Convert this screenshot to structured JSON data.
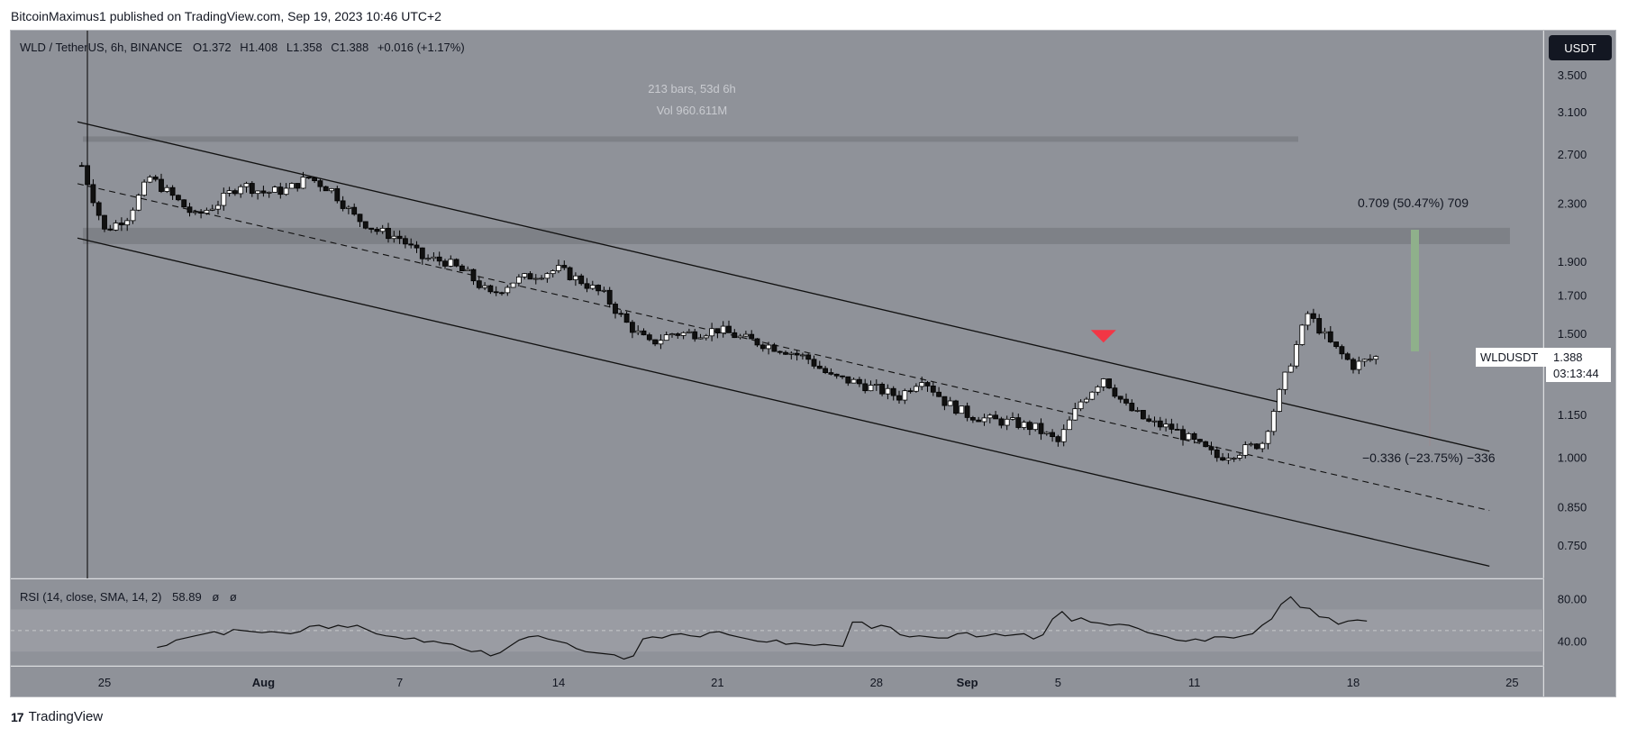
{
  "header": {
    "publisher_text": "BitcoinMaximus1 published on TradingView.com, Sep 19, 2023 10:46 UTC+2"
  },
  "footer": {
    "brand": "TradingView"
  },
  "chart_data": [
    {
      "type": "candlestick",
      "symbol_line": {
        "symbol": "WLD / TetherUS, 6h, BINANCE",
        "open_label": "O",
        "open": "1.372",
        "high_label": "H",
        "high": "1.408",
        "low_label": "L",
        "low": "1.358",
        "close_label": "C",
        "close": "1.388",
        "change": "+0.016 (+1.17%)"
      },
      "currency_button": "USDT",
      "range_info": {
        "bars": "213 bars, 53d 6h",
        "volume": "Vol 960.611M"
      },
      "measure_up": "0.709 (50.47%) 709",
      "measure_down": "−0.336 (−23.75%) −336",
      "price_tag": {
        "symbol": "WLDUSDT",
        "price": "1.388",
        "countdown": "03:13:44"
      },
      "y_ticks": [
        "3.500",
        "3.100",
        "2.700",
        "2.300",
        "1.900",
        "1.700",
        "1.500",
        "1.150",
        "1.000",
        "0.850",
        "0.750"
      ],
      "y_tick_values": [
        3.5,
        3.1,
        2.7,
        2.3,
        1.9,
        1.7,
        1.5,
        1.15,
        1.0,
        0.85,
        0.75
      ],
      "x_ticks": [
        "25",
        "Aug",
        "7",
        "14",
        "21",
        "28",
        "Sep",
        "5",
        "11",
        "18",
        "25"
      ],
      "price_scale": "log",
      "channel": {
        "upper": {
          "start": [
            "Jul 25",
            3.0
          ],
          "end": [
            "Sep 24",
            1.02
          ]
        },
        "middle": {
          "start": [
            "Jul 25",
            2.45
          ],
          "end": [
            "Sep 24",
            0.84
          ]
        },
        "lower": {
          "start": [
            "Jul 25",
            2.05
          ],
          "end": [
            "Sep 24",
            0.7
          ]
        }
      },
      "resistance_zones": [
        {
          "from": 2.81,
          "to": 2.86
        },
        {
          "from": 2.01,
          "to": 2.12
        }
      ],
      "markers": [
        {
          "type": "breakout-rejection",
          "date": "Sep 7",
          "color": "#f23645"
        }
      ],
      "close_path_approx": [
        [
          "Jul 24",
          2.6
        ],
        [
          "Jul 25",
          2.1
        ],
        [
          "Jul 26",
          2.2
        ],
        [
          "Jul 27",
          2.5
        ],
        [
          "Jul 28",
          2.35
        ],
        [
          "Jul 29",
          2.2
        ],
        [
          "Jul 30",
          2.3
        ],
        [
          "Jul 31",
          2.45
        ],
        [
          "Aug 1",
          2.38
        ],
        [
          "Aug 2",
          2.4
        ],
        [
          "Aug 3",
          2.5
        ],
        [
          "Aug 4",
          2.4
        ],
        [
          "Aug 5",
          2.2
        ],
        [
          "Aug 6",
          2.1
        ],
        [
          "Aug 7",
          2.05
        ],
        [
          "Aug 8",
          1.92
        ],
        [
          "Aug 9",
          1.9
        ],
        [
          "Aug 10",
          1.82
        ],
        [
          "Aug 11",
          1.7
        ],
        [
          "Aug 12",
          1.78
        ],
        [
          "Aug 13",
          1.82
        ],
        [
          "Aug 14",
          1.85
        ],
        [
          "Aug 15",
          1.78
        ],
        [
          "Aug 16",
          1.7
        ],
        [
          "Aug 17",
          1.55
        ],
        [
          "Aug 18",
          1.45
        ],
        [
          "Aug 19",
          1.5
        ],
        [
          "Aug 20",
          1.5
        ],
        [
          "Aug 21",
          1.52
        ],
        [
          "Aug 22",
          1.48
        ],
        [
          "Aug 23",
          1.45
        ],
        [
          "Aug 24",
          1.42
        ],
        [
          "Aug 25",
          1.38
        ],
        [
          "Aug 26",
          1.3
        ],
        [
          "Aug 27",
          1.28
        ],
        [
          "Aug 28",
          1.25
        ],
        [
          "Aug 29",
          1.22
        ],
        [
          "Aug 30",
          1.3
        ],
        [
          "Aug 31",
          1.2
        ],
        [
          "Sep 1",
          1.15
        ],
        [
          "Sep 2",
          1.13
        ],
        [
          "Sep 3",
          1.12
        ],
        [
          "Sep 4",
          1.1
        ],
        [
          "Sep 5",
          1.05
        ],
        [
          "Sep 6",
          1.2
        ],
        [
          "Sep 7",
          1.3
        ],
        [
          "Sep 8",
          1.18
        ],
        [
          "Sep 9",
          1.12
        ],
        [
          "Sep 10",
          1.1
        ],
        [
          "Sep 11",
          1.05
        ],
        [
          "Sep 12",
          1.0
        ],
        [
          "Sep 13",
          1.02
        ],
        [
          "Sep 14",
          1.05
        ],
        [
          "Sep 15",
          1.3
        ],
        [
          "Sep 16",
          1.6
        ],
        [
          "Sep 17",
          1.45
        ],
        [
          "Sep 18",
          1.35
        ],
        [
          "Sep 19",
          1.388
        ]
      ]
    },
    {
      "type": "line",
      "title": "RSI (14, close, SMA, 14, 2)",
      "last_value": "58.89",
      "na1": "ø",
      "na2": "ø",
      "y_ticks": [
        "80.00",
        "40.00"
      ],
      "y_tick_values": [
        80,
        40
      ],
      "band": [
        30,
        70
      ],
      "midline": 50,
      "values": [
        34,
        36,
        41,
        43,
        45,
        47,
        49,
        46,
        51,
        50,
        49,
        48,
        49,
        48,
        47,
        49,
        54,
        55,
        52,
        55,
        53,
        55,
        51,
        47,
        45,
        44,
        42,
        43,
        39,
        40,
        38,
        37,
        33,
        30,
        31,
        26,
        29,
        35,
        41,
        44,
        45,
        42,
        40,
        38,
        33,
        30,
        29,
        28,
        27,
        23,
        26,
        42,
        44,
        43,
        46,
        47,
        45,
        44,
        48,
        49,
        46,
        44,
        42,
        40,
        39,
        41,
        37,
        38,
        37,
        36,
        37,
        36,
        35,
        58,
        58,
        52,
        55,
        53,
        46,
        44,
        45,
        44,
        43,
        43,
        47,
        48,
        44,
        45,
        47,
        45,
        46,
        47,
        42,
        46,
        61,
        68,
        59,
        62,
        58,
        57,
        55,
        56,
        55,
        52,
        48,
        46,
        44,
        41,
        40,
        42,
        40,
        44,
        44,
        43,
        45,
        47,
        55,
        61,
        75,
        82,
        72,
        71,
        63,
        62,
        56,
        59,
        60,
        59
      ]
    }
  ]
}
